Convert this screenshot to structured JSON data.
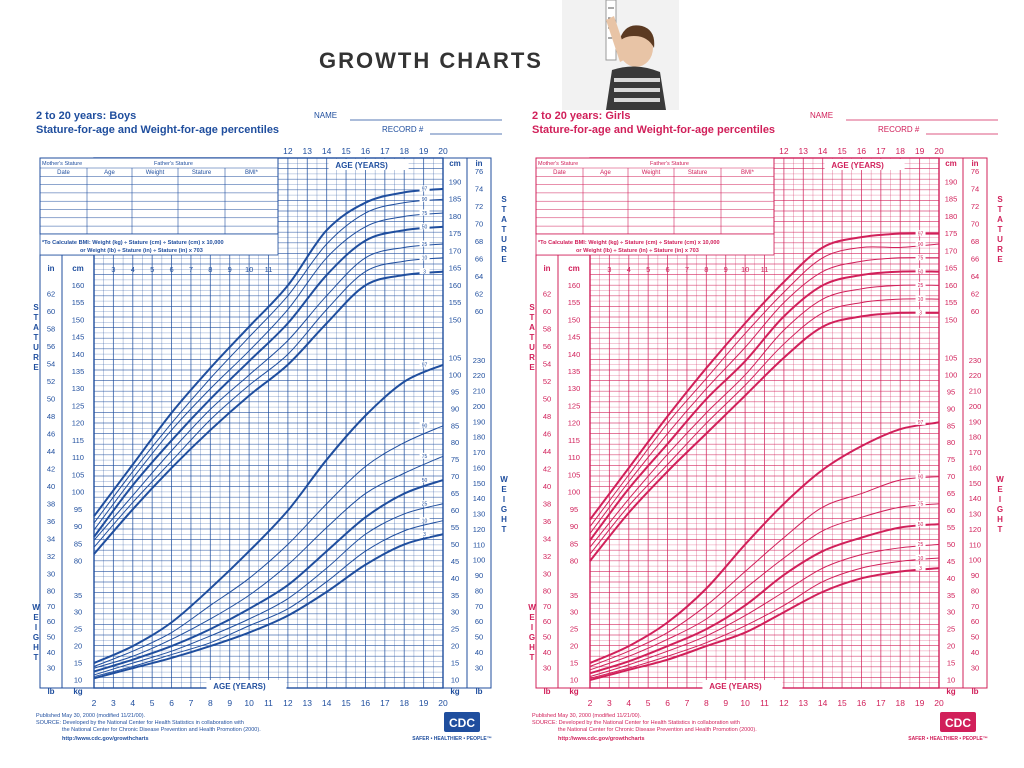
{
  "banner": {
    "title": "GROWTH CHARTS"
  },
  "chart_data": [
    {
      "type": "line",
      "sex": "Boys",
      "title": "2 to 20 years: Boys",
      "subtitle": "Stature-for-age and Weight-for-age percentiles",
      "name_label": "NAME",
      "record_label": "RECORD #",
      "color": "#1f4e9e",
      "xlabel": "AGE (YEARS)",
      "x_ticks": [
        "2",
        "3",
        "4",
        "5",
        "6",
        "7",
        "8",
        "9",
        "10",
        "11",
        "12",
        "13",
        "14",
        "15",
        "16",
        "17",
        "18",
        "19",
        "20"
      ],
      "xlim": [
        2,
        20
      ],
      "stature_ylabel": "STATURE",
      "weight_ylabel": "WEIGHT",
      "stature_cm_ticks": [
        "80",
        "85",
        "90",
        "95",
        "100",
        "105",
        "110",
        "115",
        "120",
        "125",
        "130",
        "135",
        "140",
        "145",
        "150",
        "155",
        "160",
        "165",
        "170",
        "175",
        "180",
        "185",
        "190"
      ],
      "stature_in_ticks": [
        "30",
        "32",
        "34",
        "36",
        "38",
        "40",
        "42",
        "44",
        "46",
        "48",
        "50",
        "52",
        "54",
        "56",
        "58",
        "60",
        "62",
        "64",
        "66",
        "68",
        "70",
        "72",
        "74",
        "76"
      ],
      "weight_kg_ticks": [
        "10",
        "15",
        "20",
        "25",
        "30",
        "35",
        "40",
        "45",
        "50",
        "55",
        "60",
        "65",
        "70",
        "75",
        "80",
        "85",
        "90",
        "95",
        "100",
        "105"
      ],
      "weight_lb_ticks": [
        "30",
        "40",
        "50",
        "60",
        "70",
        "80",
        "90",
        "100",
        "110",
        "120",
        "130",
        "140",
        "150",
        "160",
        "170",
        "180",
        "190",
        "200",
        "210",
        "220",
        "230"
      ],
      "percentile_labels": [
        "3",
        "10",
        "25",
        "50",
        "75",
        "90",
        "97"
      ],
      "stature_cm": {
        "x": [
          2,
          4,
          6,
          8,
          10,
          12,
          14,
          16,
          18,
          20
        ],
        "series": [
          {
            "name": "3",
            "values": [
              82,
              95,
              107,
              118,
              128,
              137,
              149,
              160,
              163,
              164
            ]
          },
          {
            "name": "10",
            "values": [
              84,
              97,
              109,
              121,
              131,
              140,
              153,
              164,
              167,
              168
            ]
          },
          {
            "name": "25",
            "values": [
              86,
              99,
              112,
              124,
              134,
              144,
              157,
              168,
              171,
              172
            ]
          },
          {
            "name": "50",
            "values": [
              87,
              102,
              115,
              127,
              138,
              149,
              163,
              173,
              176,
              177
            ]
          },
          {
            "name": "75",
            "values": [
              89,
              104,
              118,
              130,
              141,
              153,
              168,
              177,
              180,
              181
            ]
          },
          {
            "name": "90",
            "values": [
              91,
              106,
              120,
              133,
              145,
              157,
              172,
              181,
              184,
              185
            ]
          },
          {
            "name": "97",
            "values": [
              93,
              108,
              123,
              136,
              148,
              160,
              176,
              184,
              187,
              188
            ]
          }
        ]
      },
      "weight_kg": {
        "x": [
          2,
          4,
          6,
          8,
          10,
          12,
          14,
          16,
          18,
          20
        ],
        "series": [
          {
            "name": "3",
            "values": [
              10.5,
              13.5,
              16.5,
              20,
              24,
              29,
              36,
              44,
              50,
              53
            ]
          },
          {
            "name": "10",
            "values": [
              11,
              14,
              17.5,
              21,
              26,
              31,
              39,
              48,
              54,
              57
            ]
          },
          {
            "name": "25",
            "values": [
              11.5,
              15,
              18.5,
              23,
              28,
              34,
              43,
              53,
              59,
              62
            ]
          },
          {
            "name": "50",
            "values": [
              12.5,
              16,
              20,
              25,
              31,
              38,
              48,
              58,
              65,
              69
            ]
          },
          {
            "name": "75",
            "values": [
              13.5,
              17,
              22,
              28,
              35,
              44,
              55,
              65,
              71,
              76
            ]
          },
          {
            "name": "90",
            "values": [
              14,
              18.5,
              24,
              32,
              40,
              50,
              62,
              73,
              80,
              85
            ]
          },
          {
            "name": "97",
            "values": [
              15,
              20,
              27,
              37,
              48,
              60,
              75,
              88,
              98,
              103
            ]
          }
        ]
      },
      "bmi_note": "*To Calculate BMI: Weight (kg) ÷ Stature (cm) ÷ Stature (cm) x 10,000",
      "bmi_note2": "or Weight (lb) ÷ Stature (in) ÷ Stature (in) x 703",
      "table_headers": [
        "Date",
        "Age",
        "Weight",
        "Stature",
        "BMI*"
      ],
      "mothers_stature": "Mother's Stature",
      "fathers_stature": "Father's Stature",
      "published": "Published May 30, 2000 (modified 11/21/00).",
      "source": "SOURCE: Developed by the National Center for Health Statistics in collaboration with",
      "source2": "the National Center for Chronic Disease Prevention and Health Promotion (2000).",
      "url": "http://www.cdc.gov/growthcharts",
      "logo": "CDC",
      "tagline": "SAFER • HEALTHIER • PEOPLE™"
    },
    {
      "type": "line",
      "sex": "Girls",
      "title": "2 to 20 years: Girls",
      "subtitle": "Stature-for-age and Weight-for-age percentiles",
      "name_label": "NAME",
      "record_label": "RECORD #",
      "color": "#d1205a",
      "xlabel": "AGE (YEARS)",
      "x_ticks": [
        "2",
        "3",
        "4",
        "5",
        "6",
        "7",
        "8",
        "9",
        "10",
        "11",
        "12",
        "13",
        "14",
        "15",
        "16",
        "17",
        "18",
        "19",
        "20"
      ],
      "xlim": [
        2,
        20
      ],
      "stature_ylabel": "STATURE",
      "weight_ylabel": "WEIGHT",
      "stature_cm_ticks": [
        "80",
        "85",
        "90",
        "95",
        "100",
        "105",
        "110",
        "115",
        "120",
        "125",
        "130",
        "135",
        "140",
        "145",
        "150",
        "155",
        "160",
        "165",
        "170",
        "175",
        "180",
        "185",
        "190"
      ],
      "stature_in_ticks": [
        "30",
        "32",
        "34",
        "36",
        "38",
        "40",
        "42",
        "44",
        "46",
        "48",
        "50",
        "52",
        "54",
        "56",
        "58",
        "60",
        "62",
        "64",
        "66",
        "68",
        "70",
        "72",
        "74",
        "76"
      ],
      "weight_kg_ticks": [
        "10",
        "15",
        "20",
        "25",
        "30",
        "35",
        "40",
        "45",
        "50",
        "55",
        "60",
        "65",
        "70",
        "75",
        "80",
        "85",
        "90",
        "95",
        "100",
        "105"
      ],
      "weight_lb_ticks": [
        "30",
        "40",
        "50",
        "60",
        "70",
        "80",
        "90",
        "100",
        "110",
        "120",
        "130",
        "140",
        "150",
        "160",
        "170",
        "180",
        "190",
        "200",
        "210",
        "220",
        "230"
      ],
      "percentile_labels": [
        "3",
        "10",
        "25",
        "50",
        "75",
        "90",
        "97"
      ],
      "stature_cm": {
        "x": [
          2,
          4,
          6,
          8,
          10,
          12,
          14,
          16,
          18,
          20
        ],
        "series": [
          {
            "name": "3",
            "values": [
              80,
              94,
              106,
              117,
              128,
              139,
              148,
              151,
              152,
              152
            ]
          },
          {
            "name": "10",
            "values": [
              82,
              96,
              108,
              120,
              131,
              143,
              152,
              155,
              156,
              156
            ]
          },
          {
            "name": "25",
            "values": [
              84,
              98,
              111,
              123,
              134,
              147,
              156,
              159,
              160,
              160
            ]
          },
          {
            "name": "50",
            "values": [
              86,
              101,
              114,
              127,
              138,
              151,
              160,
              163,
              164,
              164
            ]
          },
          {
            "name": "75",
            "values": [
              88,
              103,
              117,
              130,
              142,
              155,
              164,
              167,
              168,
              168
            ]
          },
          {
            "name": "90",
            "values": [
              90,
              105,
              120,
              133,
              146,
              158,
              168,
              171,
              171,
              172
            ]
          },
          {
            "name": "97",
            "values": [
              92,
              107,
              122,
              136,
              149,
              161,
              171,
              174,
              175,
              175
            ]
          }
        ]
      },
      "weight_kg": {
        "x": [
          2,
          4,
          6,
          8,
          10,
          12,
          14,
          16,
          18,
          20
        ],
        "series": [
          {
            "name": "3",
            "values": [
              10,
              13,
              16,
              20,
              24,
              30,
              36,
              40,
              42,
              43
            ]
          },
          {
            "name": "10",
            "values": [
              10.5,
              13.5,
              17,
              21,
              26,
              32,
              39,
              43,
              45,
              46
            ]
          },
          {
            "name": "25",
            "values": [
              11,
              14.5,
              18.5,
              23,
              29,
              36,
              43,
              47,
              49,
              50
            ]
          },
          {
            "name": "50",
            "values": [
              12,
              15.5,
              20,
              25,
              32,
              41,
              48,
              52,
              55,
              56
            ]
          },
          {
            "name": "75",
            "values": [
              13,
              17,
              22,
              28,
              37,
              46,
              54,
              58,
              61,
              62
            ]
          },
          {
            "name": "90",
            "values": [
              14,
              18.5,
              24,
              32,
              42,
              52,
              61,
              65,
              69,
              70
            ]
          },
          {
            "name": "97",
            "values": [
              15,
              20,
              27,
              37,
              50,
              62,
              72,
              79,
              84,
              86
            ]
          }
        ]
      },
      "bmi_note": "*To Calculate BMI: Weight (kg) ÷ Stature (cm) ÷ Stature (cm) x 10,000",
      "bmi_note2": "or Weight (lb) ÷ Stature (in) ÷ Stature (in) x 703",
      "table_headers": [
        "Date",
        "Age",
        "Weight",
        "Stature",
        "BMI*"
      ],
      "mothers_stature": "Mother's Stature",
      "fathers_stature": "Father's Stature",
      "published": "Published May 30, 2000 (modified 11/21/00).",
      "source": "SOURCE: Developed by the National Center for Health Statistics in collaboration with",
      "source2": "the National Center for Chronic Disease Prevention and Health Promotion (2000).",
      "url": "http://www.cdc.gov/growthcharts",
      "logo": "CDC",
      "tagline": "SAFER • HEALTHIER • PEOPLE™"
    }
  ]
}
